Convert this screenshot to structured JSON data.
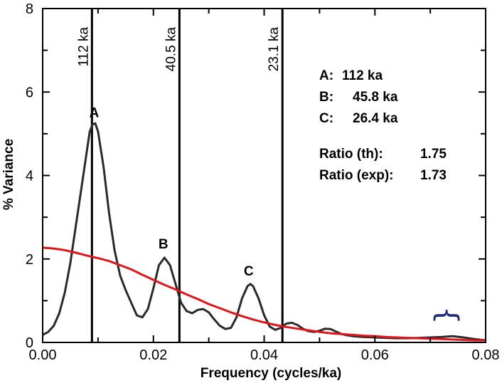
{
  "chart_data": {
    "type": "line",
    "xlabel": "Frequency (cycles/ka)",
    "ylabel": "% Variance",
    "xlim": [
      0,
      0.08
    ],
    "ylim": [
      0,
      8
    ],
    "x_ticks": [
      0,
      0.01,
      0.02,
      0.03,
      0.04,
      0.05,
      0.06,
      0.07,
      0.08
    ],
    "x_tick_labels": [
      "0.00",
      "",
      "0.02",
      "",
      "0.04",
      "",
      "0.06",
      "",
      "0.08"
    ],
    "y_ticks": [
      0,
      1,
      2,
      3,
      4,
      5,
      6,
      7,
      8
    ],
    "y_tick_labels": [
      "0",
      "",
      "2",
      "",
      "4",
      "",
      "6",
      "",
      "8"
    ],
    "series": [
      {
        "color": "#2a2a2a",
        "points": [
          [
            0.0,
            0.18
          ],
          [
            0.001,
            0.25
          ],
          [
            0.002,
            0.4
          ],
          [
            0.003,
            0.7
          ],
          [
            0.004,
            1.2
          ],
          [
            0.005,
            1.9
          ],
          [
            0.006,
            2.8
          ],
          [
            0.007,
            3.7
          ],
          [
            0.008,
            4.6
          ],
          [
            0.0085,
            5.05
          ],
          [
            0.009,
            5.22
          ],
          [
            0.0095,
            5.25
          ],
          [
            0.01,
            5.05
          ],
          [
            0.011,
            4.2
          ],
          [
            0.012,
            3.1
          ],
          [
            0.013,
            2.2
          ],
          [
            0.014,
            1.6
          ],
          [
            0.015,
            1.25
          ],
          [
            0.016,
            0.95
          ],
          [
            0.017,
            0.65
          ],
          [
            0.018,
            0.6
          ],
          [
            0.019,
            0.8
          ],
          [
            0.02,
            1.3
          ],
          [
            0.021,
            1.85
          ],
          [
            0.022,
            2.03
          ],
          [
            0.023,
            1.85
          ],
          [
            0.024,
            1.4
          ],
          [
            0.025,
            0.95
          ],
          [
            0.026,
            0.75
          ],
          [
            0.027,
            0.7
          ],
          [
            0.028,
            0.78
          ],
          [
            0.029,
            0.8
          ],
          [
            0.03,
            0.72
          ],
          [
            0.031,
            0.55
          ],
          [
            0.032,
            0.4
          ],
          [
            0.033,
            0.32
          ],
          [
            0.034,
            0.35
          ],
          [
            0.035,
            0.6
          ],
          [
            0.036,
            1.05
          ],
          [
            0.037,
            1.35
          ],
          [
            0.0375,
            1.4
          ],
          [
            0.038,
            1.35
          ],
          [
            0.039,
            1.05
          ],
          [
            0.04,
            0.65
          ],
          [
            0.041,
            0.38
          ],
          [
            0.042,
            0.3
          ],
          [
            0.043,
            0.35
          ],
          [
            0.044,
            0.45
          ],
          [
            0.045,
            0.47
          ],
          [
            0.046,
            0.42
          ],
          [
            0.047,
            0.33
          ],
          [
            0.048,
            0.27
          ],
          [
            0.049,
            0.25
          ],
          [
            0.05,
            0.28
          ],
          [
            0.051,
            0.33
          ],
          [
            0.052,
            0.32
          ],
          [
            0.053,
            0.26
          ],
          [
            0.054,
            0.2
          ],
          [
            0.055,
            0.17
          ],
          [
            0.056,
            0.15
          ],
          [
            0.058,
            0.13
          ],
          [
            0.06,
            0.12
          ],
          [
            0.062,
            0.11
          ],
          [
            0.064,
            0.1
          ],
          [
            0.066,
            0.1
          ],
          [
            0.068,
            0.11
          ],
          [
            0.07,
            0.12
          ],
          [
            0.072,
            0.13
          ],
          [
            0.074,
            0.15
          ],
          [
            0.076,
            0.12
          ],
          [
            0.078,
            0.08
          ],
          [
            0.08,
            0.05
          ]
        ]
      },
      {
        "color": "#e0151b",
        "points": [
          [
            0.0,
            2.27
          ],
          [
            0.002,
            2.25
          ],
          [
            0.004,
            2.21
          ],
          [
            0.006,
            2.15
          ],
          [
            0.008,
            2.08
          ],
          [
            0.01,
            2.02
          ],
          [
            0.012,
            1.95
          ],
          [
            0.014,
            1.85
          ],
          [
            0.016,
            1.75
          ],
          [
            0.018,
            1.62
          ],
          [
            0.02,
            1.5
          ],
          [
            0.022,
            1.38
          ],
          [
            0.024,
            1.27
          ],
          [
            0.026,
            1.15
          ],
          [
            0.028,
            1.04
          ],
          [
            0.03,
            0.92
          ],
          [
            0.032,
            0.82
          ],
          [
            0.034,
            0.72
          ],
          [
            0.036,
            0.63
          ],
          [
            0.038,
            0.55
          ],
          [
            0.04,
            0.48
          ],
          [
            0.042,
            0.42
          ],
          [
            0.044,
            0.37
          ],
          [
            0.046,
            0.33
          ],
          [
            0.048,
            0.29
          ],
          [
            0.05,
            0.25
          ],
          [
            0.052,
            0.22
          ],
          [
            0.054,
            0.2
          ],
          [
            0.056,
            0.18
          ],
          [
            0.058,
            0.16
          ],
          [
            0.06,
            0.15
          ],
          [
            0.062,
            0.13
          ],
          [
            0.064,
            0.12
          ],
          [
            0.066,
            0.11
          ],
          [
            0.068,
            0.1
          ],
          [
            0.07,
            0.09
          ],
          [
            0.072,
            0.08
          ],
          [
            0.074,
            0.07
          ],
          [
            0.076,
            0.06
          ],
          [
            0.078,
            0.05
          ],
          [
            0.08,
            0.05
          ]
        ]
      }
    ],
    "vertical_lines": [
      {
        "x": 0.0089,
        "label": "112 ka"
      },
      {
        "x": 0.0247,
        "label": "40.5 ka"
      },
      {
        "x": 0.0433,
        "label": "23.1 ka"
      }
    ],
    "peak_labels": [
      {
        "text": "A",
        "x": 0.0093,
        "y": 5.4
      },
      {
        "text": "B",
        "x": 0.0218,
        "y": 2.25
      },
      {
        "text": "C",
        "x": 0.0372,
        "y": 1.6
      }
    ],
    "annotations": {
      "lines": [
        {
          "key": "A:",
          "value": "112 ka"
        },
        {
          "key": "B:",
          "value": "45.8 ka"
        },
        {
          "key": "C:",
          "value": "26.4 ka"
        },
        {
          "key": "Ratio (th):",
          "value": "1.75"
        },
        {
          "key": "Ratio (exp):",
          "value": "1.73"
        }
      ]
    },
    "bracket": {
      "symbol": "}",
      "color": "#1f2a7a",
      "x": 0.0745,
      "y": 0.65
    },
    "grid": false
  }
}
